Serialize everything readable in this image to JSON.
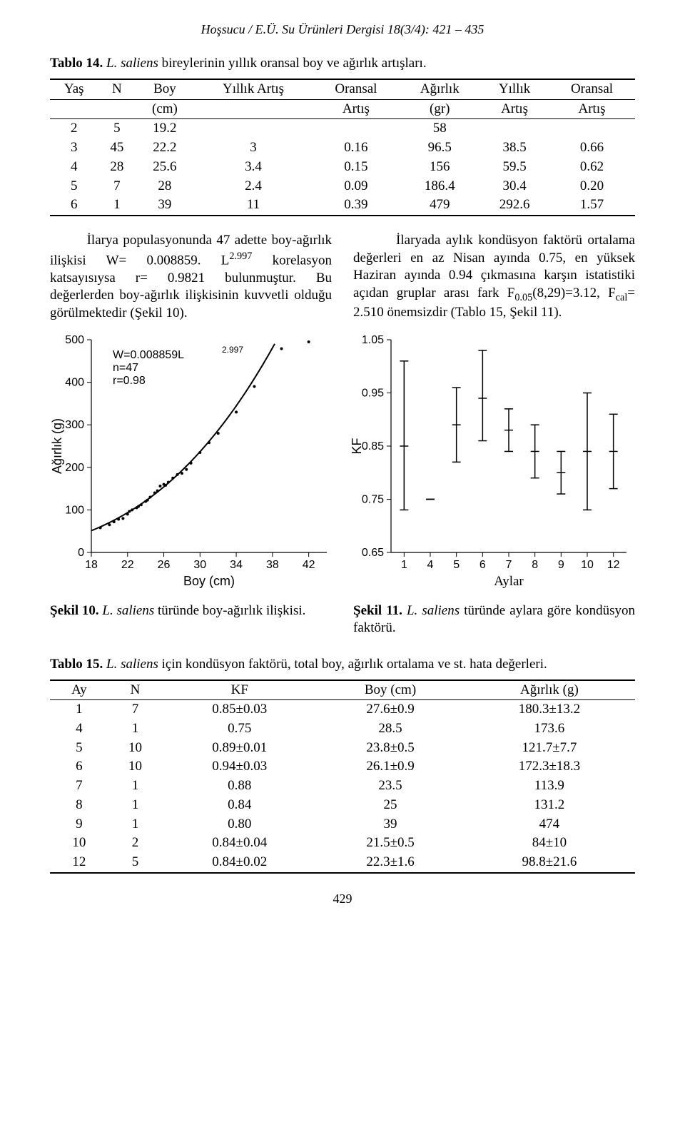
{
  "header": "Hoşsucu / E.Ü. Su Ürünleri Dergisi 18(3/4): 421 – 435",
  "tablo14": {
    "title_prefix": "Tablo 14. ",
    "title_italic": "L. saliens",
    "title_suffix": " bireylerinin yıllık oransal boy ve ağırlık artışları.",
    "headers_top": [
      "Yaş",
      "N",
      "Boy",
      "Yıllık Artış",
      "Oransal",
      "Ağırlık",
      "Yıllık",
      "Oransal"
    ],
    "headers_bot": [
      "",
      "",
      "(cm)",
      "",
      "Artış",
      "(gr)",
      "Artış",
      "Artış"
    ],
    "rows": [
      [
        "2",
        "5",
        "19.2",
        "",
        "",
        "58",
        "",
        ""
      ],
      [
        "3",
        "45",
        "22.2",
        "3",
        "0.16",
        "96.5",
        "38.5",
        "0.66"
      ],
      [
        "4",
        "28",
        "25.6",
        "3.4",
        "0.15",
        "156",
        "59.5",
        "0.62"
      ],
      [
        "5",
        "7",
        "28",
        "2.4",
        "0.09",
        "186.4",
        "30.4",
        "0.20"
      ],
      [
        "6",
        "1",
        "39",
        "11",
        "0.39",
        "479",
        "292.6",
        "1.57"
      ]
    ]
  },
  "para1_indent": "        ",
  "para1_a": "İlarya populasyonunda 47 adette boy-ağırlık ilişkisi W= 0.008859. L",
  "para1_sup": "2.997",
  "para1_b": " korelasyon katsayısıysa r= 0.9821 bulunmuştur. Bu değerlerden boy-ağırlık ilişkisinin kuvvetli olduğu görülmektedir (Şekil 10).",
  "para2_a": "İlaryada aylık kondüsyon faktörü ortalama değerleri en az Nisan ayında 0.75, en yüksek Haziran ayında 0.94 çıkmasına karşın istatistiki açıdan gruplar arası fark F",
  "para2_sub1": "0.05",
  "para2_b": "(8,29)=3.12, F",
  "para2_sub2": "cal",
  "para2_c": "= 2.510 önemsizdir (Tablo 15, Şekil 11).",
  "chart_left": {
    "type": "scatter-with-curve",
    "xlim": [
      18,
      44
    ],
    "ylim": [
      0,
      500
    ],
    "xticks": [
      18,
      22,
      26,
      30,
      34,
      38,
      42
    ],
    "yticks": [
      0,
      100,
      200,
      300,
      400,
      500
    ],
    "xlabel": "Boy (cm)",
    "ylabel": "Ağırlık (g)",
    "annot_lines": [
      "W=0.008859L",
      "n=47",
      "r=0.98"
    ],
    "annot_sup": "2.997",
    "points": [
      [
        19,
        58
      ],
      [
        20,
        65
      ],
      [
        20.5,
        72
      ],
      [
        21,
        78
      ],
      [
        21.5,
        80
      ],
      [
        22,
        90
      ],
      [
        22.2,
        96.5
      ],
      [
        22.5,
        100
      ],
      [
        23,
        105
      ],
      [
        23.2,
        108
      ],
      [
        23.5,
        112
      ],
      [
        24,
        120
      ],
      [
        24.2,
        123
      ],
      [
        24.5,
        130
      ],
      [
        25,
        140
      ],
      [
        25.3,
        145
      ],
      [
        25.6,
        156
      ],
      [
        26,
        160
      ],
      [
        26.2,
        158
      ],
      [
        26.5,
        165
      ],
      [
        27,
        175
      ],
      [
        27.5,
        183
      ],
      [
        28,
        186
      ],
      [
        28.5,
        195
      ],
      [
        29,
        210
      ],
      [
        30,
        235
      ],
      [
        31,
        258
      ],
      [
        32,
        280
      ],
      [
        34,
        330
      ],
      [
        36,
        390
      ],
      [
        39,
        479
      ],
      [
        42,
        495
      ]
    ],
    "curve_color": "#000000",
    "point_color": "#000000",
    "axis_color": "#000000",
    "background": "#ffffff"
  },
  "chart_right": {
    "type": "errorbar",
    "xlabel": "Aylar",
    "ylabel": "KF",
    "ylim": [
      0.65,
      1.05
    ],
    "yticks": [
      0.65,
      0.75,
      0.85,
      0.95,
      1.05
    ],
    "xcats": [
      "1",
      "4",
      "5",
      "6",
      "7",
      "8",
      "9",
      "10",
      "12"
    ],
    "means": [
      0.85,
      0.75,
      0.89,
      0.94,
      0.88,
      0.84,
      0.8,
      0.84,
      0.84
    ],
    "errlow": [
      0.12,
      0.0,
      0.07,
      0.08,
      0.04,
      0.05,
      0.04,
      0.11,
      0.07
    ],
    "errhigh": [
      0.16,
      0.0,
      0.07,
      0.09,
      0.04,
      0.05,
      0.04,
      0.11,
      0.07
    ],
    "cap_w": 6,
    "color": "#000000",
    "background": "#ffffff"
  },
  "fig10": {
    "prefix": "Şekil 10. ",
    "italic": "L. saliens",
    "suffix": " türünde boy-ağırlık ilişkisi."
  },
  "fig11": {
    "prefix": "Şekil 11. ",
    "italic": "L. saliens",
    "suffix": " türünde aylara göre kondüsyon faktörü."
  },
  "tablo15": {
    "title_prefix": "Tablo 15. ",
    "title_italic": "L. saliens",
    "title_suffix": " için kondüsyon faktörü, total boy, ağırlık ortalama ve st. hata değerleri.",
    "headers": [
      "Ay",
      "N",
      "KF",
      "Boy (cm)",
      "Ağırlık (g)"
    ],
    "rows": [
      [
        "1",
        "7",
        "0.85±0.03",
        "27.6±0.9",
        "180.3±13.2"
      ],
      [
        "4",
        "1",
        "0.75",
        "28.5",
        "173.6"
      ],
      [
        "5",
        "10",
        "0.89±0.01",
        "23.8±0.5",
        "121.7±7.7"
      ],
      [
        "6",
        "10",
        "0.94±0.03",
        "26.1±0.9",
        "172.3±18.3"
      ],
      [
        "7",
        "1",
        "0.88",
        "23.5",
        "113.9"
      ],
      [
        "8",
        "1",
        "0.84",
        "25",
        "131.2"
      ],
      [
        "9",
        "1",
        "0.80",
        "39",
        "474"
      ],
      [
        "10",
        "2",
        "0.84±0.04",
        "21.5±0.5",
        "84±10"
      ],
      [
        "12",
        "5",
        "0.84±0.02",
        "22.3±1.6",
        "98.8±21.6"
      ]
    ]
  },
  "page_number": "429"
}
